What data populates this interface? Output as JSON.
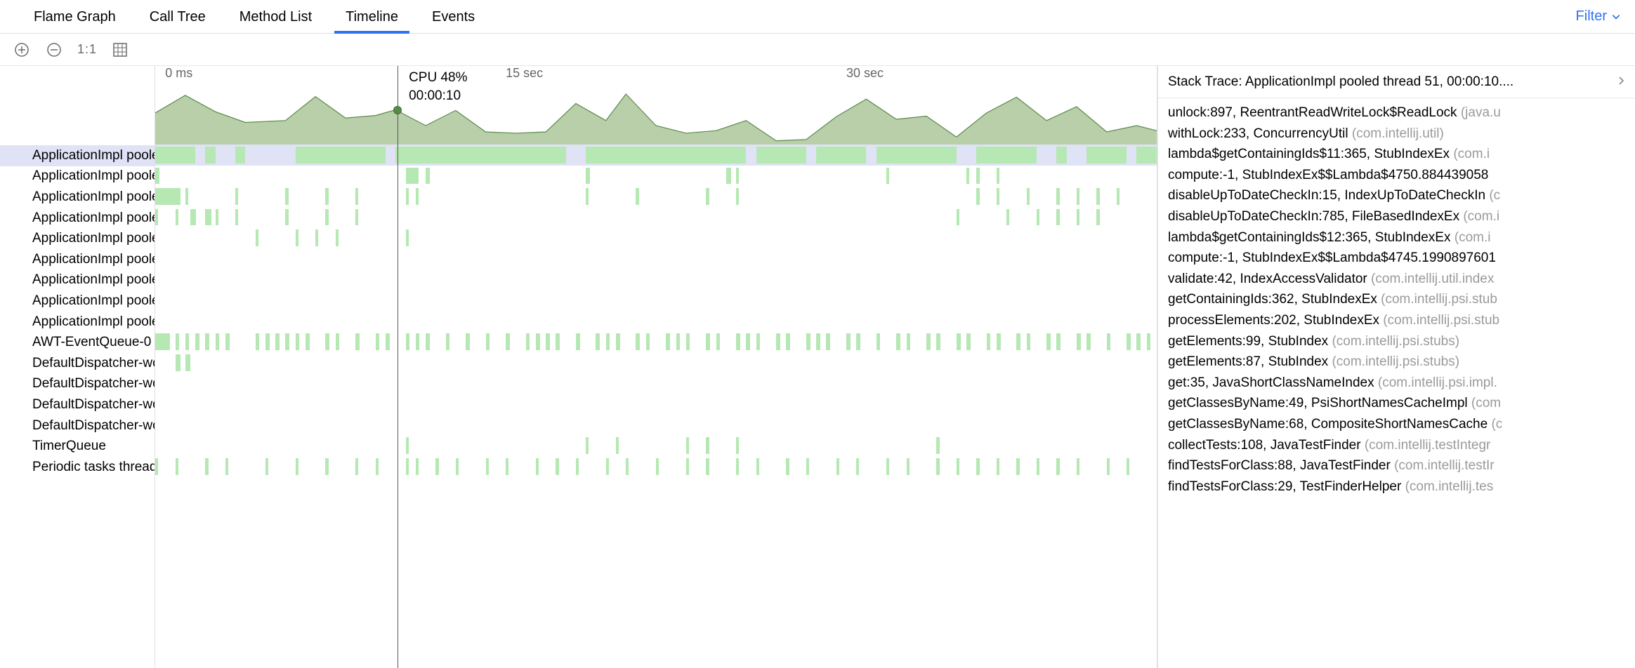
{
  "tabs": [
    {
      "label": "Flame Graph",
      "active": false
    },
    {
      "label": "Call Tree",
      "active": false
    },
    {
      "label": "Method List",
      "active": false
    },
    {
      "label": "Timeline",
      "active": true
    },
    {
      "label": "Events",
      "active": false
    }
  ],
  "filter_label": "Filter",
  "toolbar": {
    "one_to_one": "1:1"
  },
  "timeline": {
    "axis": [
      {
        "label": "0 ms",
        "pct": 1
      },
      {
        "label": "15 sec",
        "pct": 35
      },
      {
        "label": "30 sec",
        "pct": 69
      }
    ],
    "cursor_pct": 24.2,
    "cursor_y_pct": 45,
    "tooltip": {
      "l1": "CPU 48%",
      "l2": "00:00:10"
    },
    "cpu_fill": "#b8cfa9",
    "cpu_stroke": "#5a8a4a",
    "cpu_points": [
      [
        0,
        50
      ],
      [
        3,
        22
      ],
      [
        6,
        48
      ],
      [
        9,
        65
      ],
      [
        13,
        62
      ],
      [
        16,
        24
      ],
      [
        19,
        58
      ],
      [
        22,
        54
      ],
      [
        24,
        45
      ],
      [
        27,
        70
      ],
      [
        30,
        46
      ],
      [
        33,
        80
      ],
      [
        36,
        82
      ],
      [
        39,
        80
      ],
      [
        42,
        35
      ],
      [
        45,
        62
      ],
      [
        47,
        20
      ],
      [
        50,
        70
      ],
      [
        53,
        82
      ],
      [
        56,
        78
      ],
      [
        59,
        62
      ],
      [
        62,
        94
      ],
      [
        65,
        92
      ],
      [
        68,
        56
      ],
      [
        71,
        28
      ],
      [
        74,
        60
      ],
      [
        77,
        55
      ],
      [
        80,
        88
      ],
      [
        83,
        50
      ],
      [
        86,
        25
      ],
      [
        89,
        62
      ],
      [
        92,
        40
      ],
      [
        95,
        80
      ],
      [
        98,
        70
      ],
      [
        100,
        78
      ]
    ]
  },
  "threads": [
    {
      "label": "ApplicationImpl poole",
      "selected": true,
      "segs": [
        [
          0,
          4
        ],
        [
          5,
          1
        ],
        [
          8,
          1
        ],
        [
          14,
          9
        ],
        [
          24,
          17
        ],
        [
          43,
          16
        ],
        [
          60,
          5
        ],
        [
          66,
          5
        ],
        [
          72,
          8
        ],
        [
          82,
          6
        ],
        [
          90,
          1
        ],
        [
          93,
          4
        ],
        [
          98,
          2
        ]
      ]
    },
    {
      "label": "ApplicationImpl poole",
      "selected": false,
      "segs": [
        [
          0,
          0.4
        ],
        [
          25,
          1.3
        ],
        [
          27,
          0.4
        ],
        [
          43,
          0.4
        ],
        [
          57,
          0.5
        ],
        [
          58,
          0.3
        ],
        [
          73,
          0.3
        ],
        [
          81,
          0.3
        ],
        [
          82,
          0.3
        ],
        [
          84,
          0.3
        ]
      ]
    },
    {
      "label": "ApplicationImpl poole",
      "selected": false,
      "segs": [
        [
          0,
          2.5
        ],
        [
          3,
          0.3
        ],
        [
          8,
          0.3
        ],
        [
          13,
          0.3
        ],
        [
          17,
          0.3
        ],
        [
          20,
          0.3
        ],
        [
          25,
          0.3
        ],
        [
          26,
          0.3
        ],
        [
          43,
          0.3
        ],
        [
          48,
          0.3
        ],
        [
          55,
          0.3
        ],
        [
          58,
          0.3
        ],
        [
          82,
          0.3
        ],
        [
          84,
          0.3
        ],
        [
          87,
          0.3
        ],
        [
          90,
          0.3
        ],
        [
          92,
          0.3
        ],
        [
          94,
          0.3
        ],
        [
          96,
          0.3
        ]
      ]
    },
    {
      "label": "ApplicationImpl poole",
      "selected": false,
      "segs": [
        [
          0,
          0.3
        ],
        [
          2,
          0.3
        ],
        [
          3.5,
          0.6
        ],
        [
          5,
          0.6
        ],
        [
          6,
          0.3
        ],
        [
          8,
          0.3
        ],
        [
          13,
          0.3
        ],
        [
          17,
          0.3
        ],
        [
          20,
          0.3
        ],
        [
          80,
          0.3
        ],
        [
          85,
          0.3
        ],
        [
          88,
          0.3
        ],
        [
          90,
          0.3
        ],
        [
          92,
          0.3
        ],
        [
          94,
          0.3
        ]
      ]
    },
    {
      "label": "ApplicationImpl poole",
      "selected": false,
      "segs": [
        [
          10,
          0.3
        ],
        [
          14,
          0.3
        ],
        [
          16,
          0.3
        ],
        [
          18,
          0.3
        ],
        [
          25,
          0.3
        ]
      ]
    },
    {
      "label": "ApplicationImpl poole",
      "selected": false,
      "segs": []
    },
    {
      "label": "ApplicationImpl poole",
      "selected": false,
      "segs": []
    },
    {
      "label": "ApplicationImpl poole",
      "selected": false,
      "segs": []
    },
    {
      "label": "ApplicationImpl poole",
      "selected": false,
      "segs": []
    },
    {
      "label": "AWT-EventQueue-0",
      "selected": false,
      "segs": [
        [
          0,
          1.5
        ],
        [
          2,
          0.4
        ],
        [
          3,
          0.4
        ],
        [
          4,
          0.4
        ],
        [
          5,
          0.4
        ],
        [
          6,
          0.4
        ],
        [
          7,
          0.4
        ],
        [
          10,
          0.4
        ],
        [
          11,
          0.4
        ],
        [
          12,
          0.4
        ],
        [
          13,
          0.4
        ],
        [
          14,
          0.4
        ],
        [
          15,
          0.4
        ],
        [
          17,
          0.4
        ],
        [
          18,
          0.4
        ],
        [
          20,
          0.4
        ],
        [
          22,
          0.4
        ],
        [
          23,
          0.4
        ],
        [
          25,
          0.4
        ],
        [
          26,
          0.4
        ],
        [
          27,
          0.4
        ],
        [
          29,
          0.4
        ],
        [
          31,
          0.4
        ],
        [
          33,
          0.4
        ],
        [
          35,
          0.4
        ],
        [
          37,
          0.4
        ],
        [
          38,
          0.4
        ],
        [
          39,
          0.4
        ],
        [
          40,
          0.4
        ],
        [
          42,
          0.4
        ],
        [
          44,
          0.4
        ],
        [
          45,
          0.4
        ],
        [
          46,
          0.4
        ],
        [
          48,
          0.4
        ],
        [
          49,
          0.4
        ],
        [
          51,
          0.4
        ],
        [
          52,
          0.4
        ],
        [
          53,
          0.4
        ],
        [
          55,
          0.4
        ],
        [
          56,
          0.4
        ],
        [
          58,
          0.4
        ],
        [
          59,
          0.4
        ],
        [
          60,
          0.4
        ],
        [
          62,
          0.4
        ],
        [
          63,
          0.4
        ],
        [
          65,
          0.4
        ],
        [
          66,
          0.4
        ],
        [
          67,
          0.4
        ],
        [
          69,
          0.4
        ],
        [
          70,
          0.4
        ],
        [
          72,
          0.4
        ],
        [
          74,
          0.4
        ],
        [
          75,
          0.4
        ],
        [
          77,
          0.4
        ],
        [
          78,
          0.4
        ],
        [
          80,
          0.4
        ],
        [
          81,
          0.4
        ],
        [
          83,
          0.4
        ],
        [
          84,
          0.4
        ],
        [
          86,
          0.4
        ],
        [
          87,
          0.4
        ],
        [
          89,
          0.4
        ],
        [
          90,
          0.4
        ],
        [
          92,
          0.4
        ],
        [
          93,
          0.4
        ],
        [
          95,
          0.4
        ],
        [
          97,
          0.4
        ],
        [
          98,
          0.4
        ],
        [
          99,
          0.4
        ]
      ]
    },
    {
      "label": "DefaultDispatcher-wo",
      "selected": false,
      "segs": [
        [
          2,
          0.5
        ],
        [
          3,
          0.5
        ]
      ]
    },
    {
      "label": "DefaultDispatcher-wo",
      "selected": false,
      "segs": []
    },
    {
      "label": "DefaultDispatcher-wo",
      "selected": false,
      "segs": []
    },
    {
      "label": "DefaultDispatcher-wo",
      "selected": false,
      "segs": []
    },
    {
      "label": "TimerQueue",
      "selected": false,
      "segs": [
        [
          25,
          0.3
        ],
        [
          43,
          0.3
        ],
        [
          46,
          0.3
        ],
        [
          53,
          0.3
        ],
        [
          55,
          0.3
        ],
        [
          58,
          0.3
        ],
        [
          78,
          0.3
        ]
      ]
    },
    {
      "label": "Periodic tasks thread",
      "selected": false,
      "segs": [
        [
          0,
          0.3
        ],
        [
          2,
          0.3
        ],
        [
          5,
          0.3
        ],
        [
          7,
          0.3
        ],
        [
          11,
          0.3
        ],
        [
          14,
          0.3
        ],
        [
          17,
          0.3
        ],
        [
          20,
          0.3
        ],
        [
          22,
          0.3
        ],
        [
          25,
          0.3
        ],
        [
          26,
          0.3
        ],
        [
          28,
          0.3
        ],
        [
          30,
          0.3
        ],
        [
          33,
          0.3
        ],
        [
          35,
          0.3
        ],
        [
          38,
          0.3
        ],
        [
          40,
          0.3
        ],
        [
          42,
          0.3
        ],
        [
          45,
          0.3
        ],
        [
          47,
          0.3
        ],
        [
          50,
          0.3
        ],
        [
          53,
          0.3
        ],
        [
          55,
          0.3
        ],
        [
          58,
          0.3
        ],
        [
          60,
          0.3
        ],
        [
          63,
          0.3
        ],
        [
          65,
          0.3
        ],
        [
          68,
          0.3
        ],
        [
          70,
          0.3
        ],
        [
          73,
          0.3
        ],
        [
          75,
          0.3
        ],
        [
          78,
          0.3
        ],
        [
          80,
          0.3
        ],
        [
          82,
          0.3
        ],
        [
          84,
          0.3
        ],
        [
          86,
          0.3
        ],
        [
          88,
          0.3
        ],
        [
          90,
          0.3
        ],
        [
          92,
          0.3
        ],
        [
          95,
          0.3
        ],
        [
          97,
          0.3
        ]
      ]
    }
  ],
  "stack": {
    "header": "Stack Trace: ApplicationImpl pooled thread 51, 00:00:10....",
    "frames": [
      {
        "m": "unlock:897, ReentrantReadWriteLock$ReadLock",
        "p": "(java.u"
      },
      {
        "m": "withLock:233, ConcurrencyUtil",
        "p": "(com.intellij.util)"
      },
      {
        "m": "lambda$getContainingIds$11:365, StubIndexEx",
        "p": "(com.i"
      },
      {
        "m": "compute:-1, StubIndexEx$$Lambda$4750.884439058",
        "p": ""
      },
      {
        "m": "disableUpToDateCheckIn:15, IndexUpToDateCheckIn",
        "p": "(c"
      },
      {
        "m": "disableUpToDateCheckIn:785, FileBasedIndexEx",
        "p": "(com.i"
      },
      {
        "m": "lambda$getContainingIds$12:365, StubIndexEx",
        "p": "(com.i"
      },
      {
        "m": "compute:-1, StubIndexEx$$Lambda$4745.1990897601",
        "p": ""
      },
      {
        "m": "validate:42, IndexAccessValidator",
        "p": "(com.intellij.util.index"
      },
      {
        "m": "getContainingIds:362, StubIndexEx",
        "p": "(com.intellij.psi.stub"
      },
      {
        "m": "processElements:202, StubIndexEx",
        "p": "(com.intellij.psi.stub"
      },
      {
        "m": "getElements:99, StubIndex",
        "p": "(com.intellij.psi.stubs)"
      },
      {
        "m": "getElements:87, StubIndex",
        "p": "(com.intellij.psi.stubs)"
      },
      {
        "m": "get:35, JavaShortClassNameIndex",
        "p": "(com.intellij.psi.impl."
      },
      {
        "m": "getClassesByName:49, PsiShortNamesCacheImpl",
        "p": "(com"
      },
      {
        "m": "getClassesByName:68, CompositeShortNamesCache",
        "p": "(c"
      },
      {
        "m": "collectTests:108, JavaTestFinder",
        "p": "(com.intellij.testIntegr"
      },
      {
        "m": "findTestsForClass:88, JavaTestFinder",
        "p": "(com.intellij.testIr"
      },
      {
        "m": "findTestsForClass:29, TestFinderHelper",
        "p": "(com.intellij.tes"
      }
    ]
  }
}
